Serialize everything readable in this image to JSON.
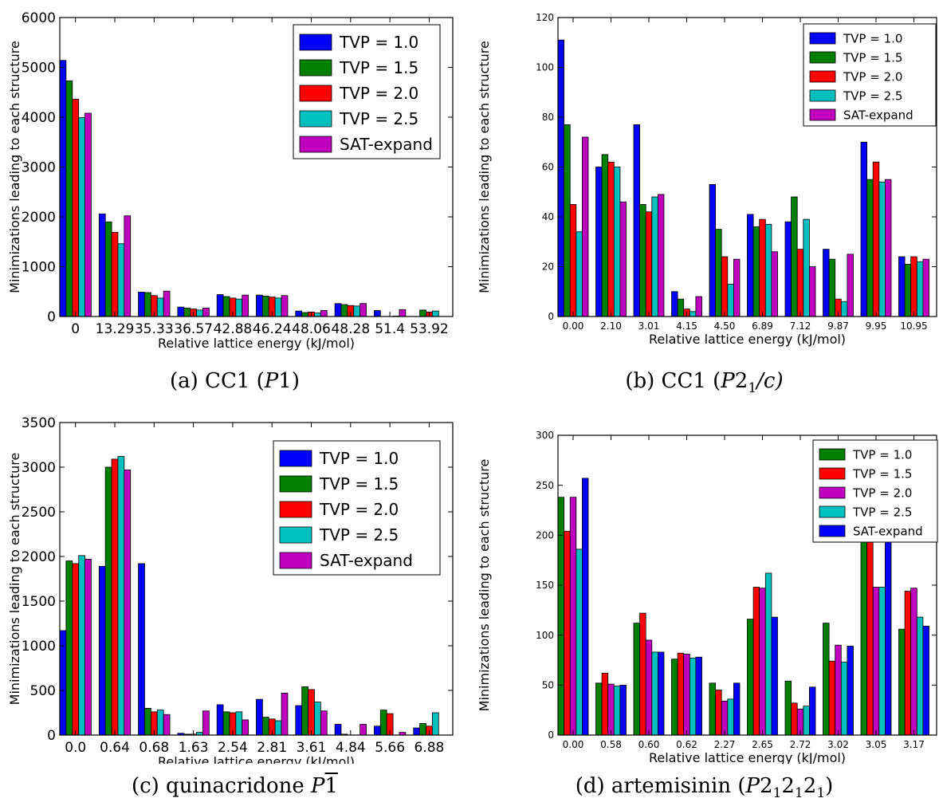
{
  "chart_data": [
    {
      "type": "bar",
      "caption": "(a) CC1 (P1)",
      "caption_prefix": "(a) CC1 (",
      "caption_italic": "P",
      "caption_tail": "1)",
      "ylabel": "Minimizations leading to each structure",
      "xlabel": "Relative lattice energy (kJ/mol)",
      "ylim": [
        0,
        6000
      ],
      "yticks": [
        0,
        1000,
        2000,
        3000,
        4000,
        5000,
        6000
      ],
      "ytick_labels": [
        "0",
        "1000",
        "2000",
        "3000",
        "4000",
        "5000",
        "6000"
      ],
      "legend_position": "top-right",
      "categories": [
        "0",
        "13.29",
        "35.33",
        "36.57",
        "42.88",
        "46.24",
        "48.06",
        "48.28",
        "51.4",
        "53.92"
      ],
      "series": [
        {
          "name": "TVP = 1.0",
          "color": "#0000ff",
          "values": [
            5140,
            2060,
            490,
            190,
            440,
            430,
            110,
            260,
            120,
            0
          ]
        },
        {
          "name": "TVP = 1.5",
          "color": "#008000",
          "values": [
            4730,
            1900,
            480,
            170,
            400,
            410,
            80,
            240,
            0,
            130
          ]
        },
        {
          "name": "TVP = 2.0",
          "color": "#ff0000",
          "values": [
            4360,
            1690,
            420,
            150,
            370,
            390,
            90,
            220,
            0,
            90
          ]
        },
        {
          "name": "TVP = 2.5",
          "color": "#00bfbf",
          "values": [
            3990,
            1460,
            370,
            130,
            350,
            370,
            70,
            210,
            10,
            110
          ]
        },
        {
          "name": "SAT-expand",
          "color": "#bf00bf",
          "values": [
            4080,
            2020,
            510,
            170,
            430,
            420,
            120,
            260,
            140,
            0
          ]
        }
      ]
    },
    {
      "type": "bar",
      "caption": "(b) CC1 (P21/c)",
      "caption_prefix": "(b) CC1 (",
      "caption_italic": "P",
      "caption_tail": "2",
      "caption_sub": "1",
      "caption_end": "/c)",
      "ylabel": "Minimizations leading to each structure",
      "xlabel": "Relative lattice energy (kJ/mol)",
      "ylim": [
        0,
        120
      ],
      "yticks": [
        0,
        20,
        40,
        60,
        80,
        100,
        120
      ],
      "ytick_labels": [
        "0",
        "20",
        "40",
        "60",
        "80",
        "100",
        "120"
      ],
      "legend_position": "top-right",
      "categories": [
        "0.00",
        "2.10",
        "3.01",
        "4.15",
        "4.50",
        "6.89",
        "7.12",
        "9.87",
        "9.95",
        "10.95"
      ],
      "series": [
        {
          "name": "TVP = 1.0",
          "color": "#0000ff",
          "values": [
            111,
            60,
            77,
            10,
            53,
            41,
            38,
            27,
            70,
            24
          ]
        },
        {
          "name": "TVP = 1.5",
          "color": "#008000",
          "values": [
            77,
            65,
            45,
            7,
            35,
            36,
            48,
            23,
            55,
            21
          ]
        },
        {
          "name": "TVP = 2.0",
          "color": "#ff0000",
          "values": [
            45,
            62,
            42,
            3,
            24,
            39,
            27,
            7,
            62,
            24
          ]
        },
        {
          "name": "TVP = 2.5",
          "color": "#00bfbf",
          "values": [
            34,
            60,
            48,
            2,
            13,
            37,
            39,
            6,
            54,
            22
          ]
        },
        {
          "name": "SAT-expand",
          "color": "#bf00bf",
          "values": [
            72,
            46,
            49,
            8,
            23,
            26,
            20,
            25,
            55,
            23
          ]
        }
      ]
    },
    {
      "type": "bar",
      "caption": "(c) quinacridone P1",
      "caption_prefix": "(c) quinacridone ",
      "caption_italic": "P",
      "caption_overline": "1",
      "ylabel": "Minimizations leading to each structure",
      "xlabel": "Relative lattice energy (kJ/mol)",
      "ylim": [
        0,
        3500
      ],
      "yticks": [
        0,
        500,
        1000,
        1500,
        2000,
        2500,
        3000,
        3500
      ],
      "ytick_labels": [
        "0",
        "500",
        "1000",
        "1500",
        "2000",
        "2500",
        "3000",
        "3500"
      ],
      "legend_position": "top-right",
      "categories": [
        "0.0",
        "0.64",
        "0.68",
        "1.63",
        "2.54",
        "2.81",
        "3.61",
        "4.84",
        "5.66",
        "6.88"
      ],
      "series": [
        {
          "name": "TVP = 1.0",
          "color": "#0000ff",
          "values": [
            1170,
            1890,
            1920,
            20,
            340,
            400,
            330,
            120,
            100,
            80
          ]
        },
        {
          "name": "TVP = 1.5",
          "color": "#008000",
          "values": [
            1950,
            3000,
            300,
            10,
            260,
            200,
            540,
            10,
            280,
            130
          ]
        },
        {
          "name": "TVP = 2.0",
          "color": "#ff0000",
          "values": [
            1920,
            3090,
            260,
            10,
            250,
            180,
            510,
            0,
            240,
            100
          ]
        },
        {
          "name": "TVP = 2.5",
          "color": "#00bfbf",
          "values": [
            2010,
            3120,
            280,
            30,
            260,
            160,
            370,
            0,
            0,
            250
          ]
        },
        {
          "name": "SAT-expand",
          "color": "#bf00bf",
          "values": [
            1970,
            2970,
            230,
            270,
            170,
            470,
            270,
            120,
            30,
            0
          ]
        }
      ]
    },
    {
      "type": "bar",
      "caption": "(d) artemisinin (P212121)",
      "caption_prefix": "(d) artemisinin (",
      "caption_italic": "P",
      "caption_tail": "2",
      "caption_sub": "1",
      "caption_end2": "2",
      "caption_sub2": "1",
      "caption_end3": "2",
      "caption_sub3": "1",
      "caption_close": ")",
      "ylabel": "Minimizations leading to each structure",
      "xlabel": "Relative lattice energy (kJ/mol)",
      "ylim": [
        0,
        300
      ],
      "yticks": [
        0,
        50,
        100,
        150,
        200,
        250,
        300
      ],
      "ytick_labels": [
        "0",
        "50",
        "100",
        "150",
        "200",
        "250",
        "300"
      ],
      "legend_position": "top-right",
      "categories": [
        "0.00",
        "0.58",
        "0.60",
        "0.62",
        "2.27",
        "2.65",
        "2.72",
        "3.02",
        "3.05",
        "3.17"
      ],
      "series": [
        {
          "name": "TVP = 1.0",
          "color": "#008000",
          "values": [
            238,
            52,
            112,
            76,
            52,
            116,
            54,
            112,
            205,
            106
          ]
        },
        {
          "name": "TVP = 1.5",
          "color": "#ff0000",
          "values": [
            204,
            62,
            122,
            82,
            45,
            148,
            32,
            74,
            194,
            144
          ]
        },
        {
          "name": "TVP = 2.0",
          "color": "#bf00bf",
          "values": [
            238,
            51,
            95,
            81,
            34,
            147,
            26,
            90,
            148,
            147
          ]
        },
        {
          "name": "TVP = 2.5",
          "color": "#00bfbf",
          "values": [
            186,
            49,
            83,
            77,
            36,
            162,
            29,
            73,
            148,
            118
          ]
        },
        {
          "name": "SAT-expand",
          "color": "#0000ff",
          "values": [
            257,
            50,
            83,
            78,
            52,
            118,
            48,
            89,
            197,
            109
          ]
        }
      ]
    }
  ]
}
